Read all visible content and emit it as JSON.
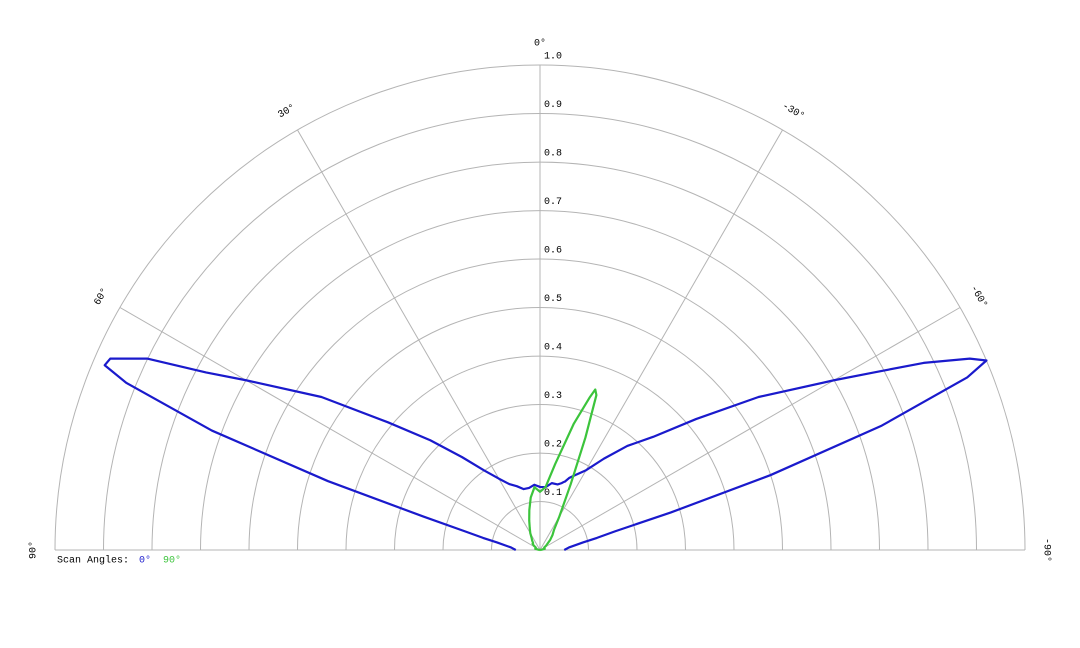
{
  "chart_data": {
    "type": "polar",
    "legend_title": "Scan Angles:",
    "x": [
      90,
      85,
      80,
      78,
      76,
      74,
      72,
      70,
      68,
      67,
      66,
      64,
      62,
      60,
      55,
      50,
      45,
      40,
      35,
      30,
      25,
      20,
      15,
      10,
      5,
      0,
      -5,
      -10,
      -15,
      -18,
      -19,
      -20,
      -22,
      -25,
      -30,
      -35,
      -40,
      -45,
      -50,
      -55,
      -60,
      -62,
      -64,
      -66,
      -67,
      -68,
      -70,
      -72,
      -74,
      -76,
      -78,
      -80,
      -85,
      -90
    ],
    "series": [
      {
        "name": "0°",
        "color": "#1a1acc",
        "values": [
          0.05,
          0.06,
          0.09,
          0.12,
          0.16,
          0.25,
          0.46,
          0.72,
          0.92,
          0.975,
          0.97,
          0.9,
          0.78,
          0.7,
          0.55,
          0.41,
          0.32,
          0.25,
          0.2,
          0.17,
          0.15,
          0.14,
          0.13,
          0.13,
          0.135,
          0.13,
          0.13,
          0.14,
          0.14,
          0.145,
          0.148,
          0.15,
          0.16,
          0.17,
          0.19,
          0.23,
          0.28,
          0.33,
          0.42,
          0.55,
          0.7,
          0.78,
          0.88,
          0.97,
          1.0,
          0.95,
          0.75,
          0.5,
          0.28,
          0.16,
          0.12,
          0.09,
          0.06,
          0.05
        ]
      },
      {
        "name": "90°",
        "color": "#3cc43c",
        "values": [
          0,
          0,
          0.005,
          0.005,
          0.01,
          0.01,
          0.01,
          0.01,
          0.01,
          0.01,
          0.01,
          0.01,
          0.01,
          0.01,
          0.015,
          0.02,
          0.02,
          0.025,
          0.03,
          0.04,
          0.05,
          0.065,
          0.085,
          0.11,
          0.13,
          0.12,
          0.13,
          0.18,
          0.27,
          0.33,
          0.35,
          0.34,
          0.25,
          0.15,
          0.08,
          0.05,
          0.04,
          0.03,
          0.02,
          0.015,
          0.01,
          0.01,
          0.01,
          0.01,
          0.01,
          0.01,
          0.01,
          0.01,
          0.01,
          0.01,
          0.005,
          0.005,
          0,
          0
        ]
      }
    ],
    "xlim": [
      90,
      -90
    ],
    "xticks": [
      {
        "value": 90,
        "label": "90°"
      },
      {
        "value": 60,
        "label": "60°"
      },
      {
        "value": 30,
        "label": "30°"
      },
      {
        "value": 0,
        "label": "0°"
      },
      {
        "value": -30,
        "label": "-30°"
      },
      {
        "value": -60,
        "label": "-60°"
      },
      {
        "value": -90,
        "label": "-90°"
      }
    ],
    "ylim": [
      0,
      1
    ],
    "yticks": [
      0.1,
      0.2,
      0.3,
      0.4,
      0.5,
      0.6,
      0.7,
      0.8,
      0.9,
      {
        "value": 1,
        "label": "1.0"
      }
    ],
    "grid": true
  }
}
